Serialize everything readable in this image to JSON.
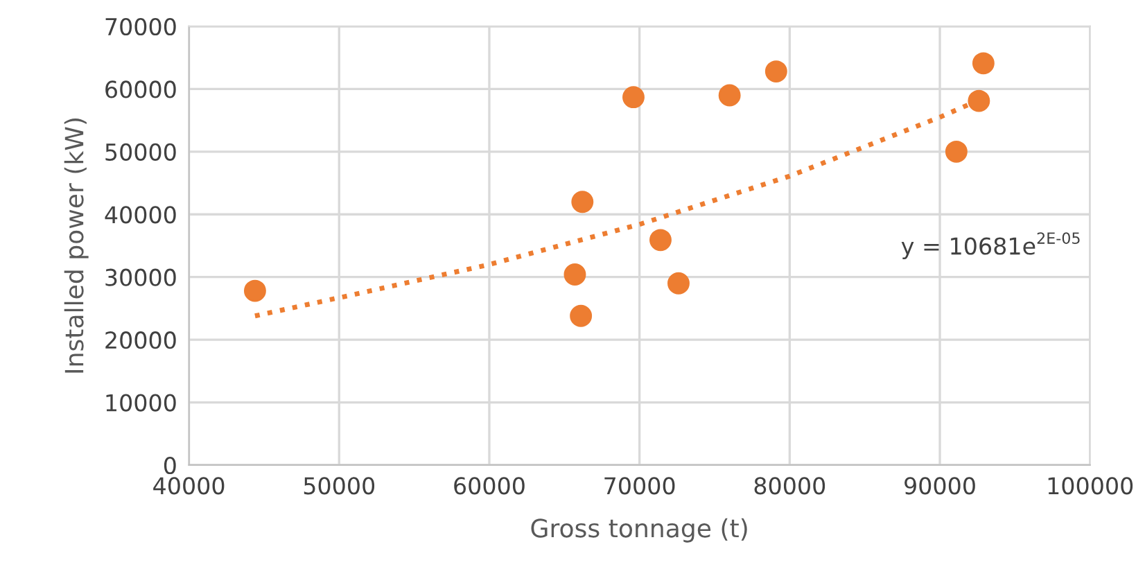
{
  "chart_data": {
    "type": "scatter",
    "xlabel": "Gross tonnage (t)",
    "ylabel": "Installed power (kW)",
    "xlim": [
      40000,
      100000
    ],
    "xticks": [
      40000,
      50000,
      60000,
      70000,
      80000,
      90000,
      100000
    ],
    "ylim": [
      0,
      70000
    ],
    "yticks": [
      0,
      10000,
      20000,
      30000,
      40000,
      50000,
      60000,
      70000
    ],
    "grid": true,
    "legend": false,
    "annotations": [
      "y = 10681e$^{2E-05}$"
    ],
    "series": [
      {
        "type": "scatter",
        "color": "#ed7d31",
        "marker": "circle",
        "x": [
          44400,
          69600,
          66200,
          65700,
          66100,
          76000,
          79100,
          92900,
          92600,
          91100,
          71400,
          72600
        ],
        "values": [
          27800,
          58700,
          42000,
          30400,
          23800,
          59000,
          62800,
          64100,
          58100,
          50000,
          35900,
          29000
        ]
      },
      {
        "type": "line",
        "color": "#ed7d31",
        "marker": "none",
        "line_style": "dotted",
        "x": [
          44400,
          50000,
          60000,
          70000,
          80000,
          90000,
          92000
        ],
        "values": [
          23800,
          26700,
          32000,
          38400,
          46100,
          55500,
          57600
        ]
      }
    ]
  }
}
